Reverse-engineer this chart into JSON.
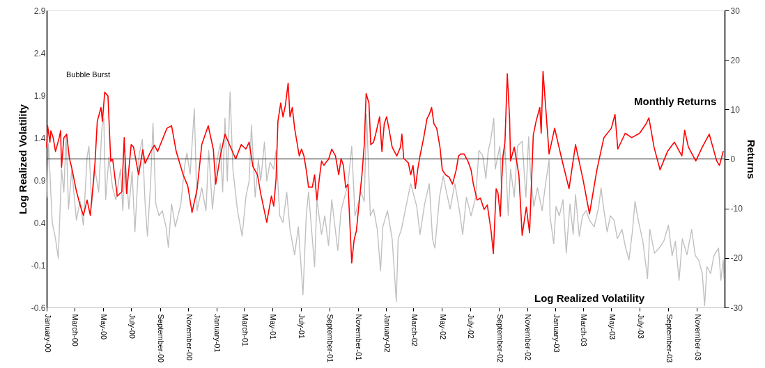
{
  "chart_data": {
    "type": "line",
    "ylabel": "Log Realized Volatility",
    "y2label": "Returns",
    "annotations": [
      "Bubble Burst"
    ],
    "xlim": [
      "2000-01-01",
      "2003-12-31"
    ],
    "xticks": [
      {
        "value": "2000-01-01",
        "label": "January-00"
      },
      {
        "value": "2000-03-01",
        "label": "March-00"
      },
      {
        "value": "2000-05-01",
        "label": "May-00"
      },
      {
        "value": "2000-07-01",
        "label": "July-00"
      },
      {
        "value": "2000-09-01",
        "label": "September-00"
      },
      {
        "value": "2000-11-01",
        "label": "November-00"
      },
      {
        "value": "2001-01-01",
        "label": "January-01"
      },
      {
        "value": "2001-03-01",
        "label": "March-01"
      },
      {
        "value": "2001-05-01",
        "label": "May-01"
      },
      {
        "value": "2001-07-01",
        "label": "July-01"
      },
      {
        "value": "2001-09-01",
        "label": "September-01"
      },
      {
        "value": "2001-11-01",
        "label": "November-01"
      },
      {
        "value": "2002-01-01",
        "label": "January-02"
      },
      {
        "value": "2002-03-01",
        "label": "March-02"
      },
      {
        "value": "2002-05-01",
        "label": "May-02"
      },
      {
        "value": "2002-07-01",
        "label": "July-02"
      },
      {
        "value": "2002-09-01",
        "label": "September-02"
      },
      {
        "value": "2002-11-01",
        "label": "November-02"
      },
      {
        "value": "2003-01-01",
        "label": "January-03"
      },
      {
        "value": "2003-03-01",
        "label": "March-03"
      },
      {
        "value": "2003-05-01",
        "label": "May-03"
      },
      {
        "value": "2003-07-01",
        "label": "July-03"
      },
      {
        "value": "2003-09-01",
        "label": "September-03"
      },
      {
        "value": "2003-11-01",
        "label": "November-03"
      }
    ],
    "ylim": [
      -0.6,
      2.9
    ],
    "yticks": [
      -0.6,
      -0.1,
      0.4,
      0.9,
      1.4,
      1.9,
      2.4,
      2.9
    ],
    "y2lim": [
      -30,
      30
    ],
    "y2ticks": [
      -30,
      -20,
      -10,
      0,
      10,
      20,
      30
    ],
    "grid": false,
    "marker": "none",
    "line_style": "solid",
    "ref_lines": [
      {
        "axis": "y2",
        "value": 0,
        "color": "#000000"
      }
    ],
    "series": [
      {
        "name": "Log Realized Volatility",
        "color": "#c0c0c0",
        "axis": "y",
        "x": [
          "2000-01-01",
          "2000-01-05",
          "2000-01-13",
          "2000-01-20",
          "2000-01-26",
          "2000-02-02",
          "2000-02-07",
          "2000-02-12",
          "2000-02-17",
          "2000-02-24",
          "2000-03-05",
          "2000-03-13",
          "2000-03-20",
          "2000-03-28",
          "2000-04-01",
          "2000-04-07",
          "2000-04-14",
          "2000-04-22",
          "2000-04-29",
          "2000-05-03",
          "2000-05-07",
          "2000-05-14",
          "2000-05-22",
          "2000-05-29",
          "2000-06-08",
          "2000-06-13",
          "2000-06-18",
          "2000-06-26",
          "2000-07-03",
          "2000-07-09",
          "2000-07-18",
          "2000-07-25",
          "2000-07-31",
          "2000-08-05",
          "2000-08-12",
          "2000-08-17",
          "2000-08-23",
          "2000-08-30",
          "2000-09-06",
          "2000-09-14",
          "2000-09-19",
          "2000-09-26",
          "2000-10-04",
          "2000-10-16",
          "2000-10-24",
          "2000-10-29",
          "2000-11-05",
          "2000-11-14",
          "2000-11-20",
          "2000-11-30",
          "2000-12-09",
          "2000-12-15",
          "2000-12-23",
          "2001-01-02",
          "2001-01-09",
          "2001-01-14",
          "2001-01-19",
          "2001-01-24",
          "2001-01-30",
          "2001-02-05",
          "2001-02-15",
          "2001-02-25",
          "2001-03-05",
          "2001-03-12",
          "2001-03-17",
          "2001-03-25",
          "2001-04-01",
          "2001-04-06",
          "2001-04-14",
          "2001-04-19",
          "2001-04-26",
          "2001-05-04",
          "2001-05-09",
          "2001-05-17",
          "2001-05-24",
          "2001-06-01",
          "2001-06-08",
          "2001-06-18",
          "2001-06-26",
          "2001-07-06",
          "2001-07-13",
          "2001-07-18",
          "2001-07-31",
          "2001-08-05",
          "2001-08-15",
          "2001-08-22",
          "2001-08-30",
          "2001-09-06",
          "2001-09-19",
          "2001-09-26",
          "2001-10-11",
          "2001-10-19",
          "2001-10-26",
          "2001-11-08",
          "2001-11-15",
          "2001-11-20",
          "2001-11-28",
          "2001-12-05",
          "2001-12-13",
          "2001-12-20",
          "2001-12-25",
          "2002-01-04",
          "2002-01-14",
          "2002-01-23",
          "2002-01-27",
          "2002-02-03",
          "2002-02-11",
          "2002-02-23",
          "2002-03-08",
          "2002-03-15",
          "2002-03-25",
          "2002-04-04",
          "2002-04-11",
          "2002-04-16",
          "2002-04-26",
          "2002-05-04",
          "2002-05-11",
          "2002-05-19",
          "2002-05-29",
          "2002-06-08",
          "2002-06-15",
          "2002-06-23",
          "2002-07-03",
          "2002-07-13",
          "2002-07-20",
          "2002-07-28",
          "2002-08-04",
          "2002-08-09",
          "2002-08-14",
          "2002-08-21",
          "2002-08-24",
          "2002-09-03",
          "2002-09-06",
          "2002-09-14",
          "2002-09-21",
          "2002-09-26",
          "2002-10-04",
          "2002-10-11",
          "2002-10-21",
          "2002-10-29",
          "2002-11-04",
          "2002-11-08",
          "2002-11-15",
          "2002-11-23",
          "2002-12-03",
          "2002-12-10",
          "2002-12-18",
          "2002-12-20",
          "2002-12-28",
          "2003-01-02",
          "2003-01-09",
          "2003-01-17",
          "2003-01-24",
          "2003-02-01",
          "2003-02-08",
          "2003-02-13",
          "2003-02-21",
          "2003-02-28",
          "2003-03-08",
          "2003-03-15",
          "2003-03-25",
          "2003-04-04",
          "2003-04-09",
          "2003-04-14",
          "2003-04-22",
          "2003-04-29",
          "2003-05-07",
          "2003-05-14",
          "2003-05-24",
          "2003-06-01",
          "2003-06-08",
          "2003-06-16",
          "2003-06-21",
          "2003-06-28",
          "2003-07-08",
          "2003-07-18",
          "2003-07-23",
          "2003-08-02",
          "2003-08-12",
          "2003-08-22",
          "2003-09-01",
          "2003-09-09",
          "2003-09-16",
          "2003-09-24",
          "2003-10-01",
          "2003-10-11",
          "2003-10-21",
          "2003-10-29",
          "2003-11-05",
          "2003-11-13",
          "2003-11-18",
          "2003-11-23",
          "2003-12-01",
          "2003-12-08",
          "2003-12-18",
          "2003-12-23",
          "2003-12-28",
          "2003-12-30"
        ],
        "values": [
          0.7,
          1.33,
          0.4,
          0.21,
          -0.02,
          1.03,
          0.76,
          1.44,
          0.56,
          1.03,
          0.43,
          0.65,
          0.37,
          1.17,
          1.3,
          0.62,
          1.03,
          0.76,
          1.52,
          1.63,
          0.67,
          1.17,
          0.81,
          0.67,
          1.03,
          0.54,
          1.17,
          0.56,
          1.0,
          0.29,
          1.19,
          1.38,
          0.62,
          0.24,
          0.89,
          1.57,
          0.62,
          0.48,
          0.54,
          0.35,
          0.11,
          0.62,
          0.35,
          0.62,
          1.06,
          1.22,
          0.97,
          1.74,
          0.54,
          0.81,
          0.54,
          1.25,
          0.56,
          1.14,
          1.33,
          0.76,
          1.63,
          0.89,
          1.94,
          1.03,
          0.54,
          0.24,
          0.7,
          0.89,
          1.55,
          0.7,
          1.14,
          0.89,
          1.35,
          0.89,
          1.11,
          1.03,
          1.25,
          0.48,
          0.4,
          0.76,
          0.32,
          0.02,
          0.35,
          -0.45,
          0.48,
          0.76,
          -0.12,
          0.67,
          0.26,
          0.48,
          0.13,
          0.67,
          0.07,
          0.54,
          0.86,
          1.3,
          0.48,
          0.76,
          0.65,
          1.68,
          0.48,
          0.56,
          0.32,
          -0.17,
          0.35,
          0.54,
          0.21,
          -0.53,
          0.21,
          0.32,
          0.54,
          0.86,
          0.59,
          0.26,
          0.62,
          0.86,
          0.21,
          0.1,
          0.7,
          0.95,
          0.76,
          0.56,
          0.86,
          0.54,
          0.26,
          0.7,
          0.48,
          0.7,
          1.25,
          1.19,
          0.92,
          1.25,
          1.36,
          1.63,
          1.03,
          1.3,
          0.86,
          1.3,
          0.48,
          1.03,
          0.7,
          1.3,
          1.36,
          0.7,
          1.41,
          0.97,
          0.59,
          0.81,
          0.54,
          0.84,
          1.14,
          0.48,
          0.15,
          0.59,
          0.48,
          0.67,
          0.04,
          0.62,
          0.26,
          0.73,
          0.24,
          0.48,
          0.54,
          0.43,
          0.35,
          0.59,
          0.81,
          0.59,
          0.29,
          0.48,
          0.43,
          0.21,
          0.32,
          0.1,
          -0.04,
          0.32,
          0.65,
          0.43,
          0.18,
          -0.26,
          0.32,
          0.04,
          0.1,
          0.18,
          0.37,
          0.01,
          0.18,
          -0.28,
          0.21,
          0.02,
          0.32,
          0.01,
          -0.04,
          -0.2,
          -0.58,
          -0.12,
          -0.2,
          0.01,
          0.1,
          -0.28,
          -0.04,
          -0.26
        ]
      },
      {
        "name": "Monthly Returns",
        "color": "#ff0000",
        "axis": "y2",
        "x": [
          "2000-01-01",
          "2000-01-03",
          "2000-01-08",
          "2000-01-10",
          "2000-01-15",
          "2000-01-20",
          "2000-01-28",
          "2000-01-31",
          "2000-02-02",
          "2000-02-07",
          "2000-02-13",
          "2000-02-19",
          "2000-02-24",
          "2000-03-05",
          "2000-03-13",
          "2000-03-20",
          "2000-03-28",
          "2000-04-04",
          "2000-04-14",
          "2000-04-19",
          "2000-04-27",
          "2000-04-30",
          "2000-05-05",
          "2000-05-12",
          "2000-05-18",
          "2000-05-22",
          "2000-06-01",
          "2000-06-11",
          "2000-06-16",
          "2000-06-21",
          "2000-07-01",
          "2000-07-06",
          "2000-07-17",
          "2000-07-26",
          "2000-07-31",
          "2000-08-12",
          "2000-08-20",
          "2000-08-27",
          "2000-09-04",
          "2000-09-16",
          "2000-09-26",
          "2000-10-06",
          "2000-10-21",
          "2000-10-31",
          "2000-11-09",
          "2000-11-20",
          "2000-11-30",
          "2000-12-14",
          "2000-12-25",
          "2000-12-30",
          "2001-01-09",
          "2001-01-19",
          "2001-02-11",
          "2001-02-23",
          "2001-03-05",
          "2001-03-12",
          "2001-03-20",
          "2001-03-30",
          "2001-04-06",
          "2001-04-19",
          "2001-04-29",
          "2001-05-04",
          "2001-05-09",
          "2001-05-13",
          "2001-05-19",
          "2001-05-24",
          "2001-05-29",
          "2001-06-04",
          "2001-06-08",
          "2001-06-13",
          "2001-06-18",
          "2001-06-23",
          "2001-06-28",
          "2001-07-03",
          "2001-07-08",
          "2001-07-13",
          "2001-07-18",
          "2001-07-26",
          "2001-07-31",
          "2001-08-05",
          "2001-08-10",
          "2001-08-15",
          "2001-08-20",
          "2001-08-25",
          "2001-08-30",
          "2001-09-06",
          "2001-09-14",
          "2001-09-21",
          "2001-09-26",
          "2001-10-01",
          "2001-10-06",
          "2001-10-11",
          "2001-10-19",
          "2001-10-24",
          "2001-10-29",
          "2001-11-03",
          "2001-11-10",
          "2001-11-15",
          "2001-11-19",
          "2001-11-25",
          "2001-11-29",
          "2001-12-05",
          "2001-12-10",
          "2001-12-18",
          "2001-12-23",
          "2001-12-28",
          "2002-01-02",
          "2002-01-07",
          "2002-01-14",
          "2002-01-19",
          "2002-01-24",
          "2002-02-01",
          "2002-02-04",
          "2002-02-08",
          "2002-02-18",
          "2002-02-23",
          "2002-02-28",
          "2002-03-05",
          "2002-03-10",
          "2002-03-15",
          "2002-03-23",
          "2002-03-30",
          "2002-04-04",
          "2002-04-09",
          "2002-04-14",
          "2002-04-20",
          "2002-04-27",
          "2002-05-02",
          "2002-05-09",
          "2002-05-17",
          "2002-05-24",
          "2002-06-01",
          "2002-06-06",
          "2002-06-11",
          "2002-06-18",
          "2002-06-26",
          "2002-07-03",
          "2002-07-08",
          "2002-07-16",
          "2002-07-23",
          "2002-07-31",
          "2002-08-07",
          "2002-08-15",
          "2002-08-20",
          "2002-08-26",
          "2002-08-30",
          "2002-09-04",
          "2002-09-09",
          "2002-09-14",
          "2002-09-19",
          "2002-09-24",
          "2002-09-26",
          "2002-10-04",
          "2002-10-14",
          "2002-10-21",
          "2002-10-30",
          "2002-11-06",
          "2002-11-14",
          "2002-11-20",
          "2002-11-28",
          "2002-12-01",
          "2002-12-05",
          "2002-12-14",
          "2002-12-18",
          "2002-12-30",
          "2003-01-14",
          "2003-01-30",
          "2003-02-13",
          "2003-03-01",
          "2003-03-15",
          "2003-03-31",
          "2003-04-15",
          "2003-05-01",
          "2003-05-09",
          "2003-05-15",
          "2003-05-31",
          "2003-06-14",
          "2003-07-01",
          "2003-07-15",
          "2003-07-21",
          "2003-08-01",
          "2003-08-14",
          "2003-08-30",
          "2003-09-14",
          "2003-09-30",
          "2003-10-06",
          "2003-10-14",
          "2003-10-30",
          "2003-11-13",
          "2003-11-28",
          "2003-12-14",
          "2003-12-20",
          "2003-12-28"
        ],
        "values": [
          2.4,
          6.7,
          3.4,
          5.7,
          4.3,
          1.5,
          4.3,
          5.7,
          -1.7,
          4.3,
          5.0,
          0.1,
          -1.8,
          -6.5,
          -9.3,
          -11.4,
          -8.3,
          -11.4,
          -0.9,
          7.6,
          10.4,
          7.6,
          13.5,
          12.7,
          -0.5,
          0.0,
          -7.5,
          -6.6,
          4.3,
          -7.0,
          2.9,
          2.4,
          -3.2,
          1.9,
          -0.9,
          1.5,
          2.8,
          1.5,
          3.4,
          6.2,
          6.7,
          1.5,
          -3.2,
          -5.5,
          -10.8,
          -6.1,
          2.9,
          6.7,
          1.9,
          -5.1,
          0.6,
          5.0,
          0.0,
          2.9,
          2.0,
          3.4,
          -1.5,
          -3.2,
          -7.0,
          -12.8,
          -7.5,
          -9.5,
          -4.0,
          7.6,
          11.3,
          8.5,
          10.8,
          15.3,
          8.5,
          10.4,
          6.2,
          3.4,
          0.6,
          2.0,
          0.6,
          -2.2,
          -5.7,
          -5.7,
          -3.2,
          -8.3,
          -4.1,
          -0.4,
          -1.3,
          -0.6,
          -0.1,
          2.0,
          0.6,
          -3.2,
          0.1,
          -1.3,
          -5.8,
          -5.1,
          -21.0,
          -16.4,
          -14.5,
          -9.7,
          -3.2,
          2.9,
          13.2,
          11.3,
          2.9,
          3.4,
          5.2,
          8.5,
          1.5,
          7.1,
          8.5,
          6.2,
          2.4,
          1.5,
          0.6,
          2.4,
          5.0,
          0.1,
          -0.8,
          -3.2,
          -1.3,
          -6.0,
          -2.2,
          0.6,
          4.3,
          8.1,
          9.0,
          10.4,
          7.1,
          6.2,
          2.4,
          -2.2,
          -3.2,
          -3.7,
          -5.1,
          -2.2,
          0.6,
          1.0,
          1.0,
          -0.4,
          -2.2,
          -5.1,
          -8.3,
          -7.9,
          -10.2,
          -9.3,
          -14.5,
          -19.1,
          -6.0,
          -6.9,
          -11.6,
          0.1,
          3.4,
          17.2,
          8.1,
          -0.4,
          2.4,
          -3.2,
          -15.4,
          -9.7,
          -14.9,
          4.8,
          7.6,
          10.4,
          5.2,
          17.7,
          6.2,
          1.0,
          6.2,
          0.1,
          -6.0,
          2.9,
          -4.1,
          -11.1,
          -2.2,
          4.3,
          6.2,
          9.0,
          2.0,
          5.2,
          4.3,
          5.2,
          7.1,
          8.3,
          2.4,
          -2.2,
          1.5,
          3.4,
          0.6,
          5.8,
          2.4,
          -0.4,
          2.4,
          5.0,
          -0.4,
          -1.3,
          1.5
        ]
      }
    ]
  }
}
